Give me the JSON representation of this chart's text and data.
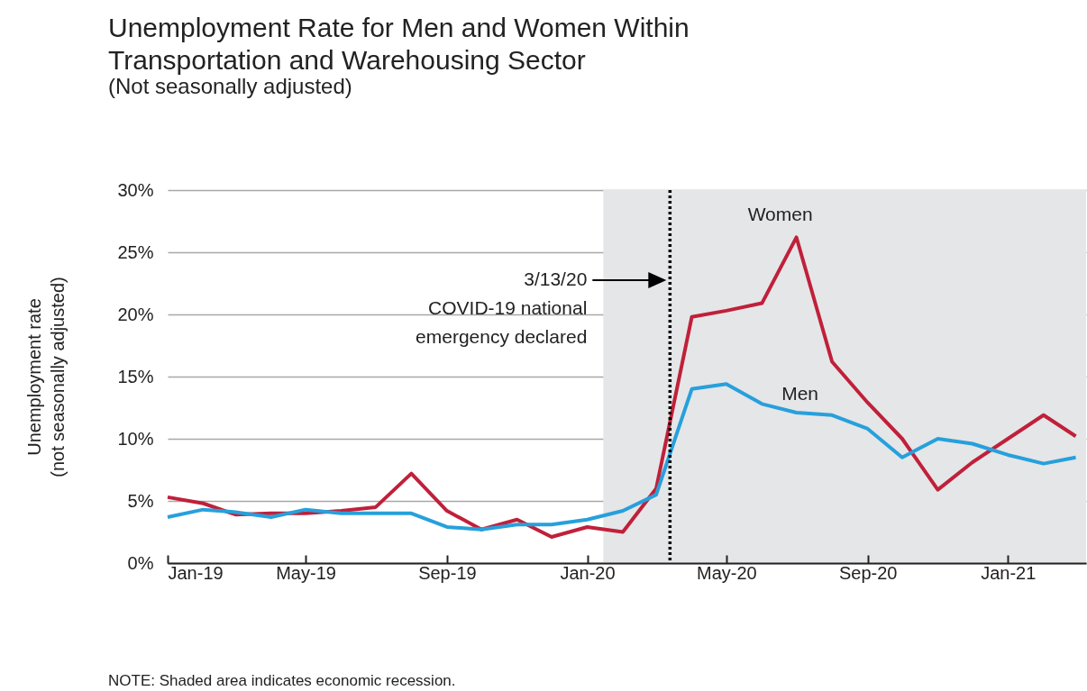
{
  "chart_data": {
    "type": "line",
    "title": "Unemployment Rate for Men and Women Within Transportation and Warehousing Sector",
    "subtitle": "(Not seasonally adjusted)",
    "ylabel": "Unemployment rate (not seasonally adjusted)",
    "x": [
      "2019-01",
      "2019-02",
      "2019-03",
      "2019-04",
      "2019-05",
      "2019-06",
      "2019-07",
      "2019-08",
      "2019-09",
      "2019-10",
      "2019-11",
      "2019-12",
      "2020-01",
      "2020-02",
      "2020-03",
      "2020-04",
      "2020-05",
      "2020-06",
      "2020-07",
      "2020-08",
      "2020-09",
      "2020-10",
      "2020-11",
      "2020-12",
      "2021-01",
      "2021-02",
      "2021-03"
    ],
    "series": [
      {
        "name": "Women",
        "color": "#c0203a",
        "values": [
          5.3,
          4.8,
          3.9,
          4.0,
          4.0,
          4.2,
          4.5,
          7.2,
          4.2,
          2.7,
          3.5,
          2.1,
          2.9,
          2.5,
          6.0,
          19.8,
          20.3,
          20.9,
          26.2,
          16.2,
          12.9,
          10.0,
          5.9,
          8.1,
          10.0,
          11.9,
          10.2
        ]
      },
      {
        "name": "Men",
        "color": "#27a0dc",
        "values": [
          3.7,
          4.3,
          4.1,
          3.7,
          4.3,
          4.0,
          4.0,
          4.0,
          2.9,
          2.7,
          3.1,
          3.1,
          3.5,
          4.2,
          5.5,
          14.0,
          14.4,
          12.8,
          12.1,
          11.9,
          10.8,
          8.5,
          10.0,
          9.6,
          8.7,
          8.0,
          8.5
        ]
      }
    ],
    "xlim": [
      "2019-01-01",
      "2021-03-10"
    ],
    "xticks": [
      {
        "value": "2019-01",
        "label": "Jan-19"
      },
      {
        "value": "2019-05",
        "label": "May-19"
      },
      {
        "value": "2019-09",
        "label": "Sep-19"
      },
      {
        "value": "2020-01",
        "label": "Jan-20"
      },
      {
        "value": "2020-05",
        "label": "May-20"
      },
      {
        "value": "2020-09",
        "label": "Sep-20"
      },
      {
        "value": "2021-01",
        "label": "Jan-21"
      }
    ],
    "ylim": [
      0,
      30
    ],
    "yticks": [
      {
        "value": 0,
        "label": "0%"
      },
      {
        "value": 5,
        "label": "5%"
      },
      {
        "value": 10,
        "label": "10%"
      },
      {
        "value": 15,
        "label": "15%"
      },
      {
        "value": 20,
        "label": "20%"
      },
      {
        "value": 25,
        "label": "25%"
      },
      {
        "value": 30,
        "label": "30%"
      }
    ],
    "grid": "y",
    "legend": false,
    "line_style": "solid",
    "ref_lines": [
      {
        "axis": "x",
        "value": "2020-03-13",
        "color": "#000000",
        "line_style": "dotted"
      }
    ],
    "bands": [
      {
        "axis": "x",
        "from": "2020-01-15",
        "to": "2021-03-10",
        "label": null,
        "color": "#e5e6e8"
      }
    ],
    "annotations": [
      "3/13/20\nCOVID-19 national\nemergency declared",
      "NOTE: Shaded area indicates economic recession."
    ]
  }
}
